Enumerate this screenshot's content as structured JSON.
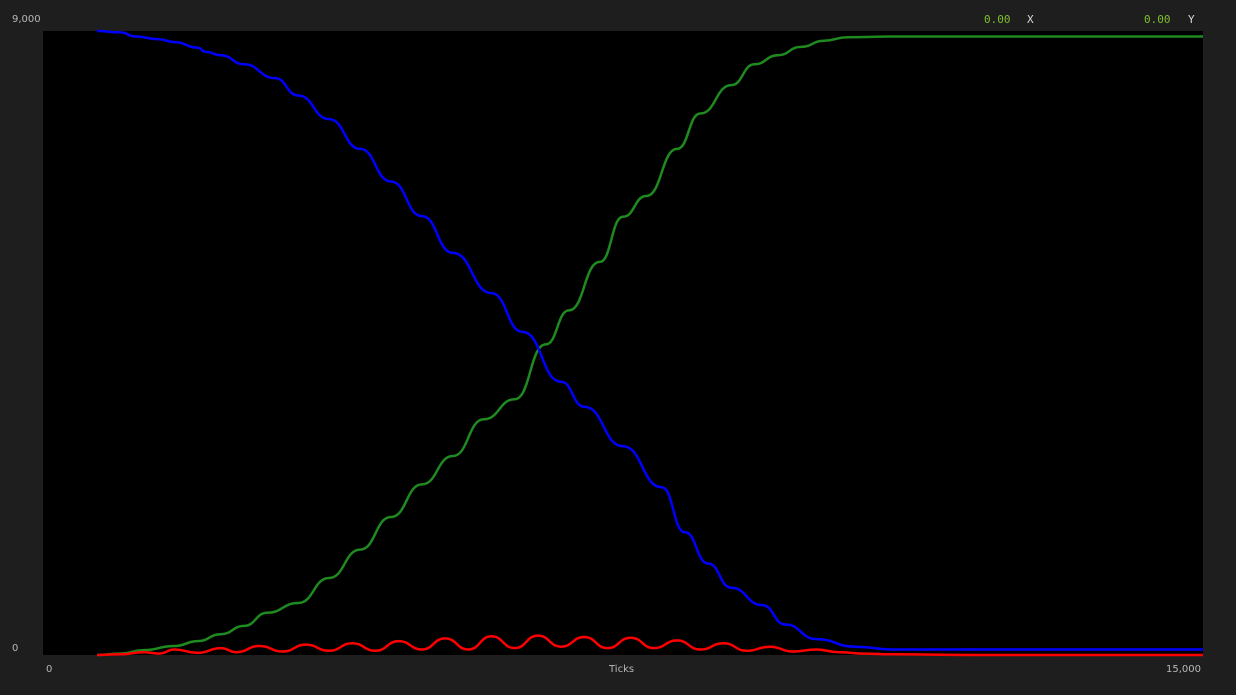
{
  "readout": {
    "x_value": "0.00",
    "x_label": "X",
    "y_value": "0.00",
    "y_label": "Y"
  },
  "colors": {
    "background": "#1e1e1e",
    "plot_area": "#000000",
    "blue": "#0000ff",
    "green": "#1f8a1f",
    "red": "#ff0000"
  },
  "chart_data": {
    "type": "line",
    "xlabel": "Ticks",
    "xlim": [
      0,
      15000
    ],
    "ylim": [
      0,
      9000
    ],
    "x_tick_labels": [
      "0",
      "15,000"
    ],
    "y_tick_labels": [
      "0",
      "9,000"
    ],
    "grid": false,
    "series": [
      {
        "color": "#0000ff",
        "x": [
          700,
          1000,
          1200,
          1500,
          1700,
          2000,
          2100,
          2300,
          2600,
          3000,
          3300,
          3700,
          4100,
          4500,
          4900,
          5300,
          5800,
          6200,
          6700,
          7000,
          7500,
          8000,
          8300,
          8600,
          8900,
          9300,
          9600,
          10000,
          10500,
          11000,
          12000,
          13000,
          14000,
          15000
        ],
        "y": [
          9000,
          8980,
          8920,
          8880,
          8840,
          8760,
          8700,
          8650,
          8520,
          8320,
          8070,
          7730,
          7300,
          6830,
          6330,
          5800,
          5220,
          4660,
          3940,
          3580,
          3010,
          2420,
          1770,
          1320,
          970,
          720,
          440,
          230,
          120,
          80,
          80,
          80,
          80,
          80
        ]
      },
      {
        "color": "#1f8a1f",
        "x": [
          700,
          1000,
          1300,
          1700,
          2000,
          2300,
          2600,
          2900,
          3300,
          3700,
          4100,
          4500,
          4900,
          5300,
          5700,
          6100,
          6500,
          6800,
          7200,
          7500,
          7800,
          8200,
          8500,
          8900,
          9200,
          9500,
          9800,
          10100,
          10400,
          11000,
          12000,
          13000,
          14000,
          15000
        ],
        "y": [
          0,
          20,
          70,
          130,
          200,
          300,
          420,
          610,
          750,
          1110,
          1520,
          1990,
          2460,
          2870,
          3400,
          3690,
          4480,
          4970,
          5670,
          6320,
          6620,
          7300,
          7810,
          8220,
          8520,
          8650,
          8770,
          8860,
          8910,
          8920,
          8920,
          8920,
          8920,
          8920
        ]
      },
      {
        "color": "#ff0000",
        "x": [
          700,
          1000,
          1300,
          1500,
          1700,
          2000,
          2300,
          2500,
          2800,
          3100,
          3400,
          3700,
          4000,
          4300,
          4600,
          4900,
          5200,
          5500,
          5800,
          6100,
          6400,
          6700,
          7000,
          7300,
          7600,
          7900,
          8200,
          8500,
          8800,
          9100,
          9400,
          9700,
          10000,
          10300,
          10600,
          11000,
          12000,
          13000,
          14000,
          15000
        ],
        "y": [
          0,
          10,
          40,
          20,
          80,
          30,
          100,
          40,
          130,
          50,
          150,
          60,
          170,
          60,
          200,
          80,
          240,
          80,
          270,
          100,
          280,
          120,
          260,
          100,
          250,
          100,
          210,
          80,
          170,
          60,
          120,
          50,
          80,
          40,
          20,
          10,
          0,
          0,
          0,
          0
        ]
      }
    ]
  }
}
